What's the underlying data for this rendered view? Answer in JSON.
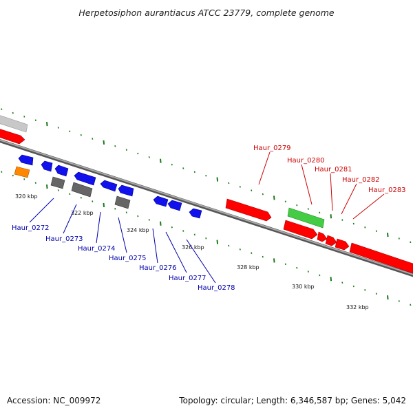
{
  "title": "Herpetosiphon aurantiacus ATCC 23779, complete genome",
  "footer": {
    "accession": "Accession: NC_009972",
    "summary": "Topology: circular; Length: 6,346,587 bp; Genes: 5,042"
  },
  "colors": {
    "forward_gene": "#ff0000",
    "reverse_gene": "#0000ee",
    "rna_gene": "#44cc44",
    "other_gene": "#ff8800",
    "pseudo": "#666666",
    "backbone": "#888888",
    "tick": "#1a7a1a",
    "label_forward": "#cc0000",
    "label_reverse": "#0000aa"
  },
  "scale_labels": [
    "320 kbp",
    "322 kbp",
    "324 kbp",
    "326 kbp",
    "328 kbp",
    "330 kbp",
    "332 kbp"
  ],
  "forward_labels": [
    "Haur_0279",
    "Haur_0280",
    "Haur_0281",
    "Haur_0282",
    "Haur_0283"
  ],
  "reverse_labels": [
    "Haur_0272",
    "Haur_0273",
    "Haur_0274",
    "Haur_0275",
    "Haur_0276",
    "Haur_0277",
    "Haur_0278"
  ]
}
